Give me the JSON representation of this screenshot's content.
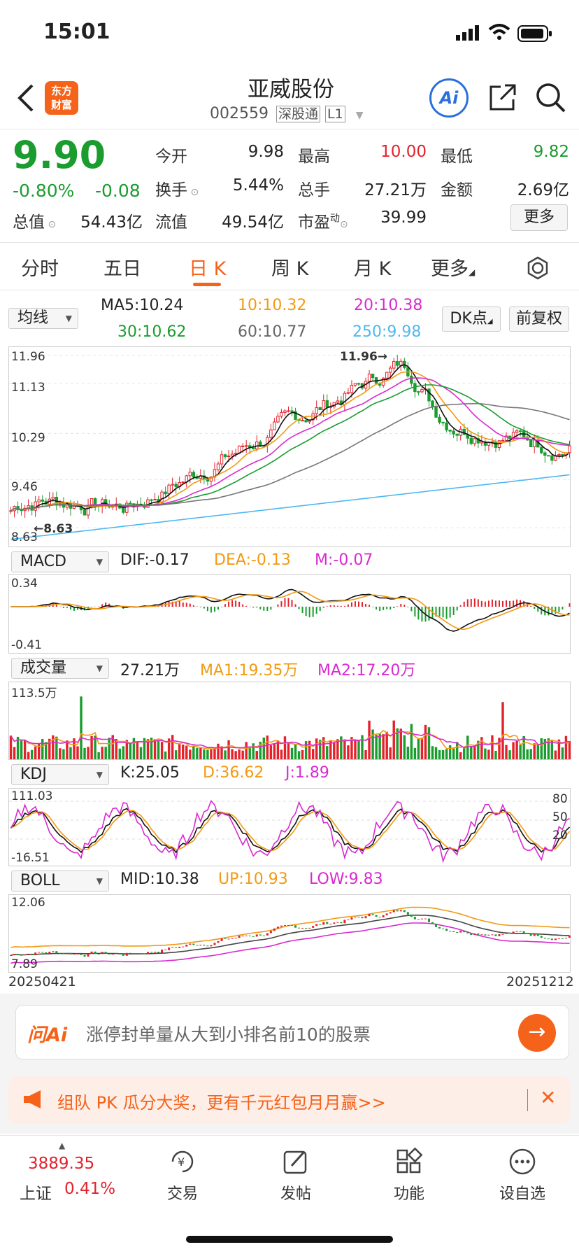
{
  "status_bar": {
    "time": "15:01"
  },
  "header": {
    "title": "亚威股份",
    "code": "002559",
    "badge1": "深股通",
    "badge2": "L1",
    "logo_line1": "东方",
    "logo_line2": "财富",
    "ai_label": "Ai"
  },
  "quote": {
    "price": "9.90",
    "change_pct": "-0.80%",
    "change": "-0.08",
    "stats": {
      "open_label": "今开",
      "open": "9.98",
      "high_label": "最高",
      "high": "10.00",
      "low_label": "最低",
      "low": "9.82",
      "turnover_label": "换手",
      "turnover": "5.44%",
      "volume_label": "总手",
      "volume": "27.21万",
      "amount_label": "金额",
      "amount": "2.69亿",
      "mktcap_label": "总值",
      "mktcap": "54.43亿",
      "float_label": "流值",
      "float": "49.54亿",
      "pe_label": "市盈",
      "pe_sup": "动",
      "pe": "39.99",
      "more": "更多"
    }
  },
  "tabs": [
    "分时",
    "五日",
    "日 K",
    "周 K",
    "月 K",
    "更多"
  ],
  "kline": {
    "ma_select": "均线",
    "ma5": "MA5:10.24",
    "ma10": "10:10.32",
    "ma20": "20:10.38",
    "ma30": "30:10.62",
    "ma60": "60:10.77",
    "ma250": "250:9.98",
    "dk_button": "DK点",
    "fq_button": "前复权",
    "y_ticks": [
      "11.96",
      "11.13",
      "10.29",
      "9.46",
      "8.63"
    ],
    "high_mark": "11.96",
    "low_mark": "8.63"
  },
  "macd": {
    "select": "MACD",
    "dif": "DIF:-0.17",
    "dea": "DEA:-0.13",
    "m": "M:-0.07",
    "top": "0.34",
    "bottom": "-0.41"
  },
  "vol": {
    "select": "成交量",
    "value": "27.21万",
    "ma1": "MA1:19.35万",
    "ma2": "MA2:17.20万",
    "top": "113.5万"
  },
  "kdj": {
    "select": "KDJ",
    "k": "K:25.05",
    "d": "D:36.62",
    "j": "J:1.89",
    "top": "111.03",
    "bottom": "-16.51",
    "r80": "80",
    "r50": "50",
    "r20": "20"
  },
  "boll": {
    "select": "BOLL",
    "mid": "MID:10.38",
    "up": "UP:10.93",
    "low": "LOW:9.83",
    "top": "12.06",
    "bottom": "7.89"
  },
  "dates": {
    "start": "20250421",
    "end": "20251212"
  },
  "ai_box": {
    "brand": "问Ai",
    "text": "涨停封单量从大到小排名前10的股票"
  },
  "promo": {
    "text": "组队 PK 瓜分大奖，更有千元红包月月赢>>"
  },
  "bottom_nav": {
    "index_value": "3889.35",
    "index_name": "上证",
    "index_pct": "0.41%",
    "items": [
      "交易",
      "发帖",
      "功能",
      "设自选"
    ]
  },
  "colors": {
    "up": "#e4222c",
    "down": "#1a9c2e",
    "accent": "#f5621a"
  }
}
